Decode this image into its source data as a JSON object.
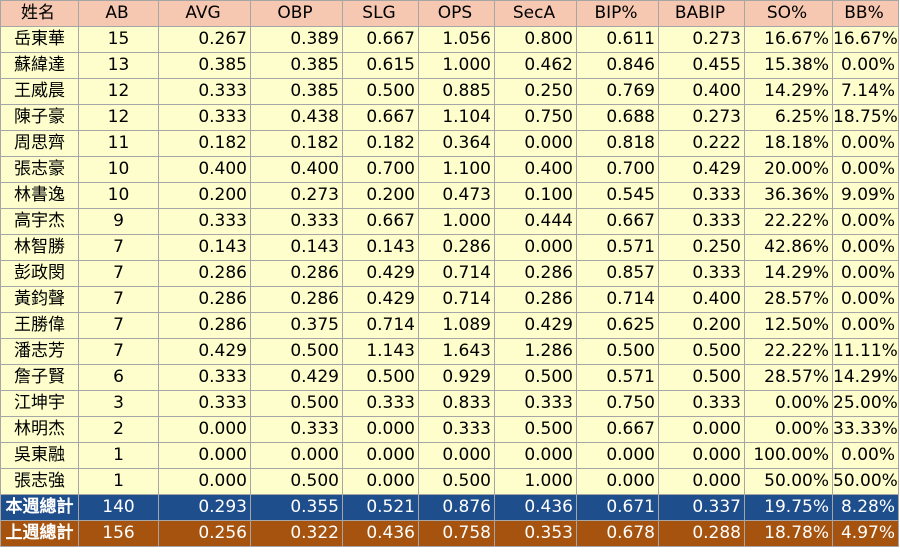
{
  "columns": [
    "姓名",
    "AB",
    "AVG",
    "OBP",
    "SLG",
    "OPS",
    "SecA",
    "BIP%",
    "BABIP",
    "SO%",
    "BB%"
  ],
  "players": [
    [
      "岳東華",
      "15",
      "0.267",
      "0.389",
      "0.667",
      "1.056",
      "0.800",
      "0.611",
      "0.273",
      "16.67%",
      "16.67%"
    ],
    [
      "蘇緯達",
      "13",
      "0.385",
      "0.385",
      "0.615",
      "1.000",
      "0.462",
      "0.846",
      "0.455",
      "15.38%",
      "0.00%"
    ],
    [
      "王威晨",
      "12",
      "0.333",
      "0.385",
      "0.500",
      "0.885",
      "0.250",
      "0.769",
      "0.400",
      "14.29%",
      "7.14%"
    ],
    [
      "陳子豪",
      "12",
      "0.333",
      "0.438",
      "0.667",
      "1.104",
      "0.750",
      "0.688",
      "0.273",
      "6.25%",
      "18.75%"
    ],
    [
      "周思齊",
      "11",
      "0.182",
      "0.182",
      "0.182",
      "0.364",
      "0.000",
      "0.818",
      "0.222",
      "18.18%",
      "0.00%"
    ],
    [
      "張志豪",
      "10",
      "0.400",
      "0.400",
      "0.700",
      "1.100",
      "0.400",
      "0.700",
      "0.429",
      "20.00%",
      "0.00%"
    ],
    [
      "林書逸",
      "10",
      "0.200",
      "0.273",
      "0.200",
      "0.473",
      "0.100",
      "0.545",
      "0.333",
      "36.36%",
      "9.09%"
    ],
    [
      "高宇杰",
      "9",
      "0.333",
      "0.333",
      "0.667",
      "1.000",
      "0.444",
      "0.667",
      "0.333",
      "22.22%",
      "0.00%"
    ],
    [
      "林智勝",
      "7",
      "0.143",
      "0.143",
      "0.143",
      "0.286",
      "0.000",
      "0.571",
      "0.250",
      "42.86%",
      "0.00%"
    ],
    [
      "彭政閔",
      "7",
      "0.286",
      "0.286",
      "0.429",
      "0.714",
      "0.286",
      "0.857",
      "0.333",
      "14.29%",
      "0.00%"
    ],
    [
      "黃鈞聲",
      "7",
      "0.286",
      "0.286",
      "0.429",
      "0.714",
      "0.286",
      "0.714",
      "0.400",
      "28.57%",
      "0.00%"
    ],
    [
      "王勝偉",
      "7",
      "0.286",
      "0.375",
      "0.714",
      "1.089",
      "0.429",
      "0.625",
      "0.200",
      "12.50%",
      "0.00%"
    ],
    [
      "潘志芳",
      "7",
      "0.429",
      "0.500",
      "1.143",
      "1.643",
      "1.286",
      "0.500",
      "0.500",
      "22.22%",
      "11.11%"
    ],
    [
      "詹子賢",
      "6",
      "0.333",
      "0.429",
      "0.500",
      "0.929",
      "0.500",
      "0.571",
      "0.500",
      "28.57%",
      "14.29%"
    ],
    [
      "江坤宇",
      "3",
      "0.333",
      "0.500",
      "0.333",
      "0.833",
      "0.333",
      "0.750",
      "0.333",
      "0.00%",
      "25.00%"
    ],
    [
      "林明杰",
      "2",
      "0.000",
      "0.333",
      "0.000",
      "0.333",
      "0.500",
      "0.667",
      "0.000",
      "0.00%",
      "33.33%"
    ],
    [
      "吳東融",
      "1",
      "0.000",
      "0.000",
      "0.000",
      "0.000",
      "0.000",
      "0.000",
      "0.000",
      "100.00%",
      "0.00%"
    ],
    [
      "張志強",
      "1",
      "0.000",
      "0.500",
      "0.000",
      "0.500",
      "1.000",
      "0.000",
      "0.000",
      "50.00%",
      "50.00%"
    ]
  ],
  "totals": {
    "this_week": [
      "本週總計",
      "140",
      "0.293",
      "0.355",
      "0.521",
      "0.876",
      "0.436",
      "0.671",
      "0.337",
      "19.75%",
      "8.28%"
    ],
    "last_week": [
      "上週總計",
      "156",
      "0.256",
      "0.322",
      "0.436",
      "0.758",
      "0.353",
      "0.678",
      "0.288",
      "18.78%",
      "4.97%"
    ]
  },
  "colors": {
    "header_bg": "#f6c8b1",
    "row_bg": "#fefecc",
    "this_week_bg": "#1f4e8c",
    "last_week_bg": "#a5530f",
    "grid": "#a6a6a6"
  }
}
